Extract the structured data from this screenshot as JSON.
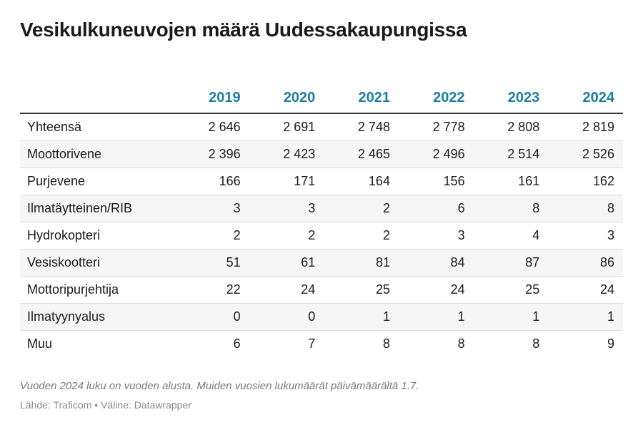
{
  "title": "Vesikulkuneuvojen määrä Uudessakaupungissa",
  "note": "Vuoden 2024 luku on vuoden alusta. Muiden vuosien lukumäärät päivämäärältä 1.7.",
  "source": "Lähde: Traficom • Väline: Datawrapper",
  "colors": {
    "header": "#1c7da3",
    "text": "#1a1a1a",
    "zebra": "#f6f6f6"
  },
  "chart_data": {
    "type": "table",
    "title": "Vesikulkuneuvojen määrä Uudessakaupungissa",
    "columns": [
      "2019",
      "2020",
      "2021",
      "2022",
      "2023",
      "2024"
    ],
    "rows": [
      {
        "label": "Yhteensä",
        "values": [
          "2 646",
          "2 691",
          "2 748",
          "2 778",
          "2 808",
          "2 819"
        ]
      },
      {
        "label": "Moottorivene",
        "values": [
          "2 396",
          "2 423",
          "2 465",
          "2 496",
          "2 514",
          "2 526"
        ]
      },
      {
        "label": "Purjevene",
        "values": [
          "166",
          "171",
          "164",
          "156",
          "161",
          "162"
        ]
      },
      {
        "label": "Ilmatäytteinen/RIB",
        "values": [
          "3",
          "3",
          "2",
          "6",
          "8",
          "8"
        ]
      },
      {
        "label": "Hydrokopteri",
        "values": [
          "2",
          "2",
          "2",
          "3",
          "4",
          "3"
        ]
      },
      {
        "label": "Vesiskootteri",
        "values": [
          "51",
          "61",
          "81",
          "84",
          "87",
          "86"
        ]
      },
      {
        "label": "Mottoripurjehtija",
        "values": [
          "22",
          "24",
          "25",
          "24",
          "25",
          "24"
        ]
      },
      {
        "label": "Ilmatyynyalus",
        "values": [
          "0",
          "0",
          "1",
          "1",
          "1",
          "1"
        ]
      },
      {
        "label": "Muu",
        "values": [
          "6",
          "7",
          "8",
          "8",
          "8",
          "9"
        ]
      }
    ]
  }
}
